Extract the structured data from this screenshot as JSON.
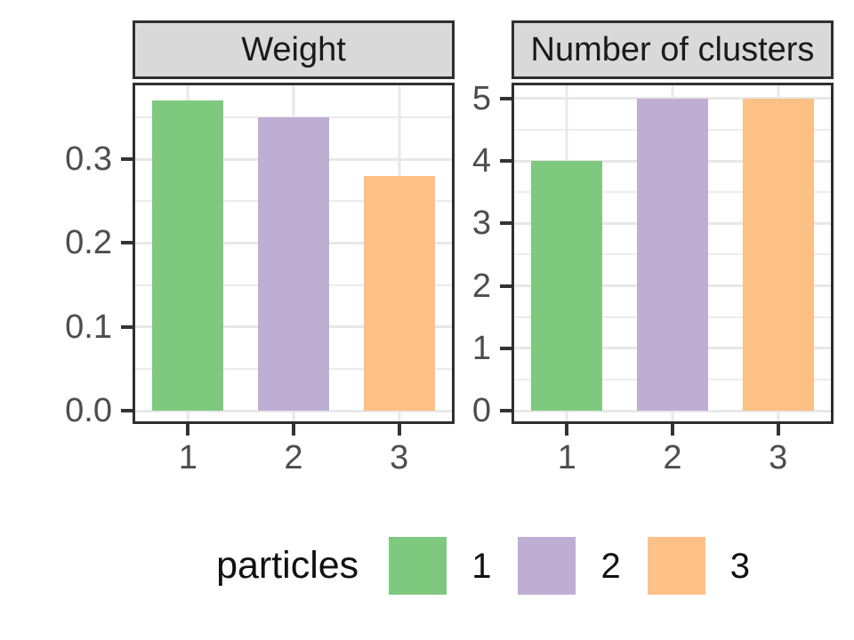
{
  "chart_data": [
    {
      "type": "bar",
      "facet": "Weight",
      "categories": [
        "1",
        "2",
        "3"
      ],
      "values": [
        0.37,
        0.35,
        0.28
      ],
      "ylim": [
        0,
        0.388
      ],
      "yticks": [
        0.0,
        0.1,
        0.2,
        0.3
      ],
      "ytick_labels": [
        "0.0",
        "0.1",
        "0.2",
        "0.3"
      ],
      "minor_yticks": [
        0.05,
        0.15,
        0.25,
        0.35
      ],
      "bar_colors": [
        "#7FC97F",
        "#BEAED4",
        "#FDC086"
      ],
      "grid": "major and minor horizontal, major vertical at categories",
      "legend_position": "bottom"
    },
    {
      "type": "bar",
      "facet": "Number of clusters",
      "categories": [
        "1",
        "2",
        "3"
      ],
      "values": [
        4,
        5,
        5
      ],
      "ylim": [
        0,
        5.21
      ],
      "yticks": [
        0,
        1,
        2,
        3,
        4,
        5
      ],
      "ytick_labels": [
        "0",
        "1",
        "2",
        "3",
        "4",
        "5"
      ],
      "minor_yticks": [
        0.5,
        1.5,
        2.5,
        3.5,
        4.5
      ],
      "bar_colors": [
        "#7FC97F",
        "#BEAED4",
        "#FDC086"
      ],
      "grid": "major and minor horizontal, major vertical at categories",
      "legend_position": "bottom"
    }
  ],
  "legend": {
    "title": "particles",
    "items": [
      {
        "label": "1",
        "color": "#7FC97F"
      },
      {
        "label": "2",
        "color": "#BEAED4"
      },
      {
        "label": "3",
        "color": "#FDC086"
      }
    ]
  },
  "colors": {
    "bar_green": "#7FC97F",
    "bar_purple": "#BEAED4",
    "bar_orange": "#FDC086",
    "strip_fill": "#D9D9D9",
    "panel_border": "#2F2F2F",
    "grid_major": "#E8E8E8",
    "grid_minor": "#ECECEC",
    "axis_text": "#4D4D4D",
    "strip_text": "#1A1A1A"
  }
}
